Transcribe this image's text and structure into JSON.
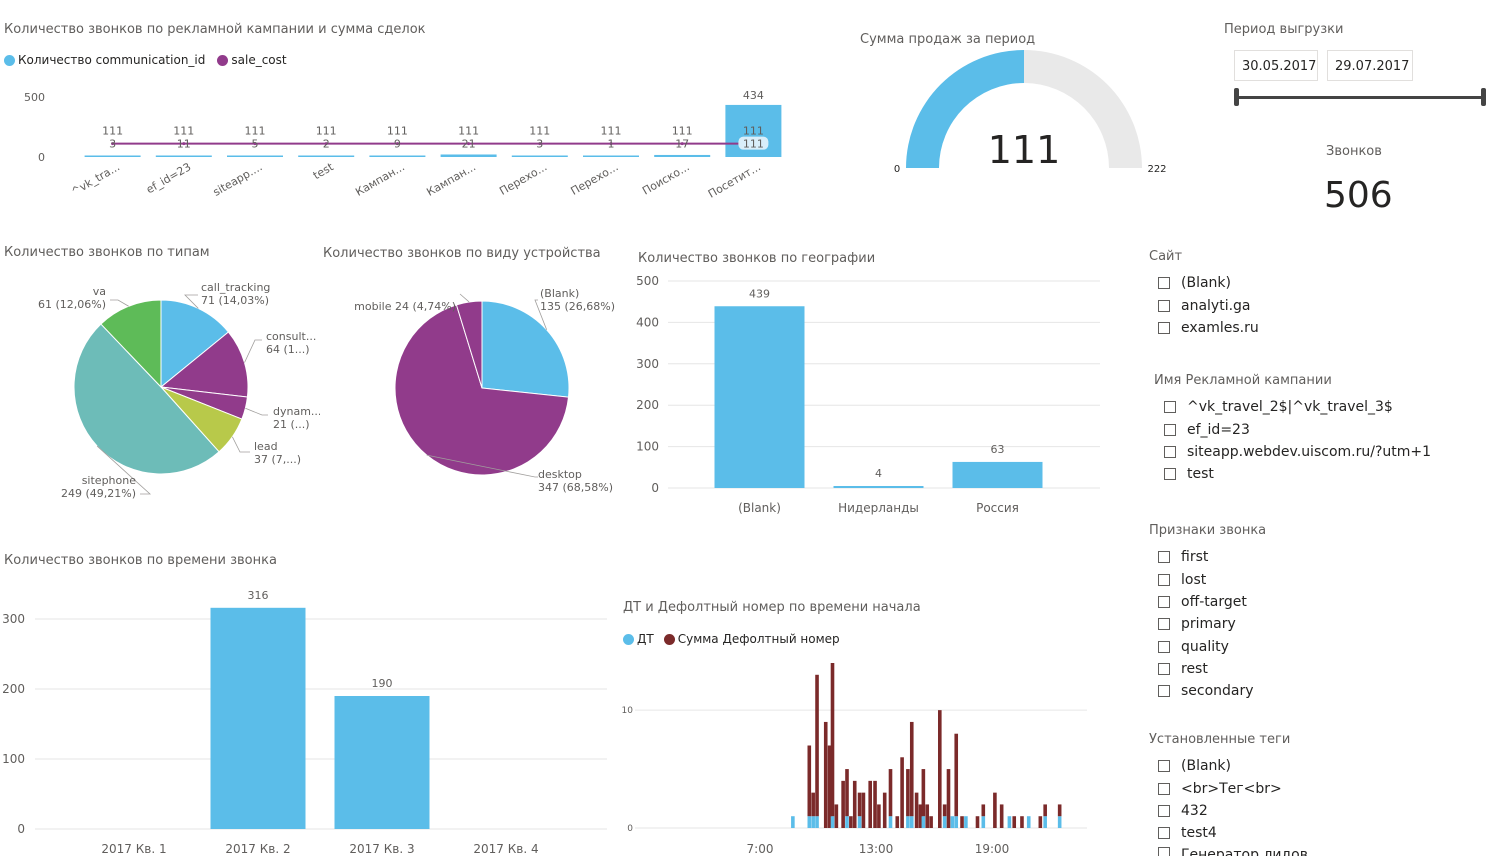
{
  "campaign_chart": {
    "title": "Количество звонков по рекламной кампании и сумма сделок",
    "legend": [
      {
        "label": "Количество communication_id",
        "color": "#5bbde9"
      },
      {
        "label": "sale_cost",
        "color": "#913b8b"
      }
    ]
  },
  "gauge": {
    "title": "Сумма продаж за период",
    "value": "111",
    "min": "0",
    "max": "222",
    "fill_fraction": 0.5,
    "fill_color": "#5bbde9",
    "track_color": "#e9e9e9"
  },
  "period": {
    "title": "Период выгрузки",
    "start": "30.05.2017",
    "end": "29.07.2017"
  },
  "calls_card": {
    "label": "Звонков",
    "value": "506"
  },
  "types_chart": {
    "title": "Количество звонков по типам"
  },
  "device_chart": {
    "title": "Количество звонков по виду устройства"
  },
  "geo_chart": {
    "title": "Количество звонков по географии"
  },
  "time_chart": {
    "title": "Количество звонков по времени звонка"
  },
  "dt_chart": {
    "title": "ДТ и Дефолтный номер по времени начала",
    "legend": [
      {
        "label": "ДТ",
        "color": "#5bbde9"
      },
      {
        "label": "Сумма Дефолтный номер",
        "color": "#7b2a2a"
      }
    ]
  },
  "slicer_site": {
    "title": "Сайт",
    "items": [
      "(Blank)",
      "analyti.ga",
      "examles.ru"
    ]
  },
  "slicer_campaign": {
    "title": "Имя Рекламной кампании",
    "items": [
      "^vk_travel_2$|^vk_travel_3$",
      "ef_id=23",
      "siteapp.webdev.uiscom.ru/?utm+1",
      "test"
    ]
  },
  "slicer_signs": {
    "title": "Признаки звонка",
    "items": [
      "first",
      "lost",
      "off-target",
      "primary",
      "quality",
      "rest",
      "secondary"
    ]
  },
  "slicer_tags": {
    "title": "Установленные теги",
    "items": [
      "(Blank)",
      "<br>Тег<br>",
      "432",
      "test4",
      "Генератор лидов"
    ]
  },
  "chart_data": [
    {
      "type": "bar",
      "title": "Количество звонков по рекламной кампании и сумма сделок",
      "categories": [
        "^vk_tra...",
        "ef_id=23",
        "siteapp....",
        "test",
        "Кампан...",
        "Кампан...",
        "Перехо...",
        "Перехо...",
        "Поиско...",
        "Посетит..."
      ],
      "series": [
        {
          "name": "Количество communication_id",
          "values": [
            3,
            11,
            5,
            2,
            9,
            21,
            3,
            1,
            17,
            434
          ],
          "color": "#5bbde9"
        },
        {
          "name": "sale_cost",
          "values": [
            111,
            111,
            111,
            111,
            111,
            111,
            111,
            111,
            111,
            111
          ],
          "color": "#913b8b",
          "style": "line"
        }
      ],
      "y_ticks": [
        "0",
        "500"
      ],
      "ylim": [
        0,
        500
      ],
      "legend_position": "top-left"
    },
    {
      "type": "pie",
      "title": "Количество звонков по типам",
      "slices": [
        {
          "label": "call_tracking",
          "value": 71,
          "text": "71 (14,03%)",
          "color": "#5bbde9"
        },
        {
          "label": "consult...",
          "value": 64,
          "text": "64 (1...)",
          "color": "#913b8b"
        },
        {
          "label": "dynam...",
          "value": 21,
          "text": "21 (...)",
          "color": "#913b8b"
        },
        {
          "label": "lead",
          "value": 37,
          "text": "37 (7,...)",
          "color": "#b8c94a"
        },
        {
          "label": "sitephone",
          "value": 249,
          "text": "249 (49,21%)",
          "color": "#6dbcb8"
        },
        {
          "label": "va",
          "value": 61,
          "text": "61 (12,06%)",
          "color": "#5ebb58"
        }
      ]
    },
    {
      "type": "pie",
      "title": "Количество звонков по виду устройства",
      "slices": [
        {
          "label": "(Blank)",
          "value": 135,
          "text": "135 (26,68%)",
          "color": "#5bbde9"
        },
        {
          "label": "desktop",
          "value": 347,
          "text": "347 (68,58%)",
          "color": "#913b8b"
        },
        {
          "label": "mobile",
          "value": 24,
          "text": "mobile 24 (4,74%)",
          "color": "#913b8b"
        }
      ]
    },
    {
      "type": "bar",
      "title": "Количество звонков по географии",
      "categories": [
        "(Blank)",
        "Нидерланды",
        "Россия"
      ],
      "values": [
        439,
        4,
        63
      ],
      "y_ticks": [
        "0",
        "100",
        "200",
        "300",
        "400",
        "500"
      ],
      "ylim": [
        0,
        500
      ],
      "grid": true
    },
    {
      "type": "bar",
      "title": "Количество звонков по времени звонка",
      "categories": [
        "2017 Кв. 1",
        "2017 Кв. 2",
        "2017 Кв. 3",
        "2017 Кв. 4"
      ],
      "values": [
        0,
        316,
        190,
        0
      ],
      "y_ticks": [
        "0",
        "100",
        "200",
        "300"
      ],
      "ylim": [
        0,
        330
      ],
      "grid": true
    },
    {
      "type": "bar",
      "title": "ДТ и Дефолтный номер по времени начала",
      "x_ticks": [
        "7:00",
        "13:00",
        "19:00"
      ],
      "y_ticks": [
        "0",
        "10"
      ],
      "ylim": [
        0,
        14
      ],
      "stacked": true,
      "x_hours": [
        8.7,
        9.2,
        9.55,
        9.75,
        9.95,
        10.4,
        10.6,
        10.75,
        10.95,
        11.3,
        11.5,
        11.7,
        11.9,
        12.15,
        12.35,
        12.7,
        12.95,
        13.15,
        13.45,
        13.75,
        14.1,
        14.35,
        14.65,
        14.85,
        15.1,
        15.3,
        15.45,
        15.65,
        15.85,
        16.3,
        16.55,
        16.75,
        16.95,
        17.15,
        17.45,
        17.65,
        18.25,
        18.55,
        19.15,
        19.5,
        19.9,
        20.15,
        20.55,
        20.9,
        21.5,
        21.75,
        22.5
      ],
      "series": [
        {
          "name": "ДТ",
          "color": "#5bbde9",
          "values": [
            1,
            0,
            1,
            1,
            1,
            0,
            0,
            1,
            0,
            0,
            1,
            0,
            0,
            1,
            0,
            0,
            0,
            0,
            0,
            1,
            0,
            0,
            1,
            1,
            0,
            0,
            1,
            0,
            0,
            0,
            1,
            0,
            1,
            1,
            0,
            1,
            0,
            1,
            0,
            0,
            1,
            0,
            0,
            1,
            0,
            1,
            1
          ]
        },
        {
          "name": "Сумма Дефолтный номер",
          "color": "#7b2a2a",
          "values": [
            0,
            0,
            6,
            2,
            12,
            9,
            7,
            13,
            2,
            4,
            4,
            1,
            4,
            2,
            3,
            4,
            4,
            2,
            3,
            4,
            1,
            6,
            4,
            8,
            3,
            2,
            4,
            2,
            1,
            10,
            1,
            5,
            0,
            7,
            1,
            0,
            1,
            1,
            3,
            2,
            0,
            1,
            1,
            0,
            1,
            1,
            1
          ]
        }
      ]
    }
  ]
}
